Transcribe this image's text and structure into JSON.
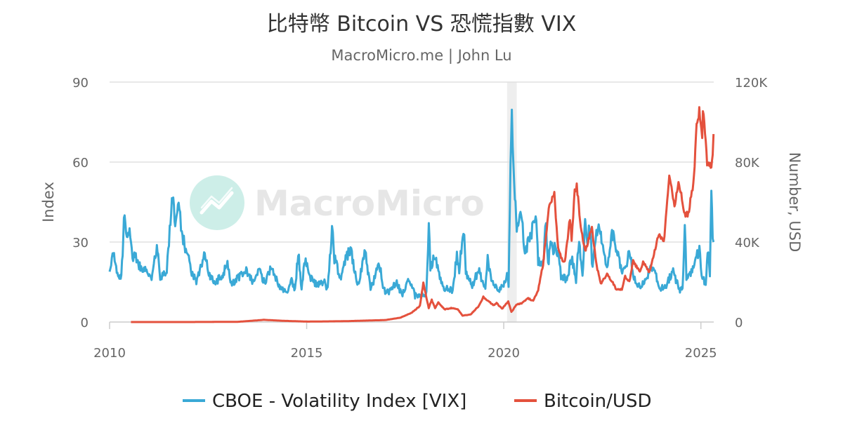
{
  "chart_data": {
    "type": "line",
    "title": "比特幣 Bitcoin VS 恐慌指數 VIX",
    "subtitle": "MacroMicro.me | John Lu",
    "watermark": "MacroMicro",
    "x_axis": {
      "type": "date",
      "ticks": [
        "2010",
        "2015",
        "2020",
        "2025"
      ],
      "range": [
        "2010-01-01",
        "2025-04-30"
      ]
    },
    "y_left": {
      "label": "Index",
      "range": [
        0,
        90
      ],
      "ticks": [
        "0",
        "30",
        "60",
        "90"
      ]
    },
    "y_right": {
      "label": "Number, USD",
      "range": [
        0,
        120000
      ],
      "ticks": [
        "0",
        "40K",
        "80K",
        "120K"
      ]
    },
    "grid": true,
    "legend": "bottom-center",
    "shaded_region": [
      "2020-02-01",
      "2020-04-30"
    ],
    "colors": {
      "vix": "#3aa9d6",
      "btc": "#e4513d",
      "shade": "#eeeeee",
      "grid": "#e0e0e0",
      "watermark": "#cdeee8"
    },
    "series": [
      {
        "name": "CBOE - Volatility Index [VIX]",
        "axis": "left",
        "points": [
          [
            "2010-01-01",
            20
          ],
          [
            "2010-02-05",
            26
          ],
          [
            "2010-03-15",
            18
          ],
          [
            "2010-04-20",
            17
          ],
          [
            "2010-05-20",
            41
          ],
          [
            "2010-06-10",
            30
          ],
          [
            "2010-07-05",
            34
          ],
          [
            "2010-08-01",
            25
          ],
          [
            "2010-09-01",
            24
          ],
          [
            "2010-10-01",
            21
          ],
          [
            "2010-11-15",
            20
          ],
          [
            "2010-12-15",
            18
          ],
          [
            "2011-02-01",
            17
          ],
          [
            "2011-03-15",
            29
          ],
          [
            "2011-04-15",
            16
          ],
          [
            "2011-06-15",
            20
          ],
          [
            "2011-08-08",
            48
          ],
          [
            "2011-09-01",
            38
          ],
          [
            "2011-10-03",
            43
          ],
          [
            "2011-11-01",
            33
          ],
          [
            "2011-12-15",
            26
          ],
          [
            "2012-02-01",
            19
          ],
          [
            "2012-03-15",
            15
          ],
          [
            "2012-06-01",
            26
          ],
          [
            "2012-07-15",
            17
          ],
          [
            "2012-09-15",
            15
          ],
          [
            "2012-11-15",
            18
          ],
          [
            "2012-12-28",
            22
          ],
          [
            "2013-02-01",
            14
          ],
          [
            "2013-04-15",
            17
          ],
          [
            "2013-06-20",
            20
          ],
          [
            "2013-08-15",
            15
          ],
          [
            "2013-10-08",
            20
          ],
          [
            "2013-12-15",
            14
          ],
          [
            "2014-02-03",
            21
          ],
          [
            "2014-04-15",
            14
          ],
          [
            "2014-07-01",
            11
          ],
          [
            "2014-08-08",
            16
          ],
          [
            "2014-09-15",
            12
          ],
          [
            "2014-10-15",
            26
          ],
          [
            "2014-11-15",
            13
          ],
          [
            "2014-12-16",
            23
          ],
          [
            "2015-02-01",
            17
          ],
          [
            "2015-04-01",
            14
          ],
          [
            "2015-06-15",
            15
          ],
          [
            "2015-07-15",
            12
          ],
          [
            "2015-08-24",
            36
          ],
          [
            "2015-09-15",
            24
          ],
          [
            "2015-11-15",
            16
          ],
          [
            "2015-12-15",
            22
          ],
          [
            "2016-02-11",
            28
          ],
          [
            "2016-04-15",
            13
          ],
          [
            "2016-06-27",
            26
          ],
          [
            "2016-08-15",
            12
          ],
          [
            "2016-11-04",
            22
          ],
          [
            "2016-12-15",
            12
          ],
          [
            "2017-02-01",
            11
          ],
          [
            "2017-04-15",
            15
          ],
          [
            "2017-06-01",
            10
          ],
          [
            "2017-08-11",
            16
          ],
          [
            "2017-10-01",
            10
          ],
          [
            "2017-12-15",
            10
          ],
          [
            "2018-01-15",
            11
          ],
          [
            "2018-02-06",
            37
          ],
          [
            "2018-02-20",
            20
          ],
          [
            "2018-04-02",
            25
          ],
          [
            "2018-06-15",
            13
          ],
          [
            "2018-09-15",
            12
          ],
          [
            "2018-10-24",
            25
          ],
          [
            "2018-11-15",
            20
          ],
          [
            "2018-12-24",
            36
          ],
          [
            "2019-01-15",
            19
          ],
          [
            "2019-03-15",
            13
          ],
          [
            "2019-05-13",
            20
          ],
          [
            "2019-07-15",
            12
          ],
          [
            "2019-08-05",
            24
          ],
          [
            "2019-09-15",
            15
          ],
          [
            "2019-11-15",
            12
          ],
          [
            "2019-12-31",
            14
          ],
          [
            "2020-01-31",
            18
          ],
          [
            "2020-02-15",
            14
          ],
          [
            "2020-03-16",
            83
          ],
          [
            "2020-04-01",
            55
          ],
          [
            "2020-05-01",
            35
          ],
          [
            "2020-06-11",
            40
          ],
          [
            "2020-07-15",
            26
          ],
          [
            "2020-09-03",
            32
          ],
          [
            "2020-10-29",
            40
          ],
          [
            "2020-11-15",
            23
          ],
          [
            "2020-12-31",
            22
          ],
          [
            "2021-01-27",
            37
          ],
          [
            "2021-02-15",
            21
          ],
          [
            "2021-03-04",
            28
          ],
          [
            "2021-05-12",
            27
          ],
          [
            "2021-06-15",
            17
          ],
          [
            "2021-08-15",
            16
          ],
          [
            "2021-09-20",
            25
          ],
          [
            "2021-11-01",
            16
          ],
          [
            "2021-11-30",
            31
          ],
          [
            "2021-12-31",
            17
          ],
          [
            "2022-01-24",
            38
          ],
          [
            "2022-02-15",
            28
          ],
          [
            "2022-03-07",
            36
          ],
          [
            "2022-04-04",
            20
          ],
          [
            "2022-05-09",
            34
          ],
          [
            "2022-06-13",
            34
          ],
          [
            "2022-08-15",
            19
          ],
          [
            "2022-09-30",
            32
          ],
          [
            "2022-10-12",
            33
          ],
          [
            "2022-12-15",
            21
          ],
          [
            "2023-01-15",
            19
          ],
          [
            "2023-03-13",
            26
          ],
          [
            "2023-04-15",
            17
          ],
          [
            "2023-06-15",
            13
          ],
          [
            "2023-08-15",
            17
          ],
          [
            "2023-10-20",
            22
          ],
          [
            "2023-12-15",
            12
          ],
          [
            "2024-02-15",
            14
          ],
          [
            "2024-04-19",
            19
          ],
          [
            "2024-06-15",
            12
          ],
          [
            "2024-07-15",
            12
          ],
          [
            "2024-08-05",
            38
          ],
          [
            "2024-08-20",
            16
          ],
          [
            "2024-09-15",
            17
          ],
          [
            "2024-11-01",
            22
          ],
          [
            "2024-12-18",
            27
          ],
          [
            "2025-01-15",
            16
          ],
          [
            "2025-02-15",
            15
          ],
          [
            "2025-03-10",
            27
          ],
          [
            "2025-03-25",
            18
          ],
          [
            "2025-04-08",
            52
          ],
          [
            "2025-04-20",
            32
          ],
          [
            "2025-04-28",
            30
          ]
        ]
      },
      {
        "name": "Bitcoin/USD",
        "axis": "right",
        "points": [
          [
            "2010-07-18",
            0
          ],
          [
            "2012-01-01",
            5
          ],
          [
            "2013-04-01",
            100
          ],
          [
            "2013-12-01",
            1100
          ],
          [
            "2014-06-01",
            600
          ],
          [
            "2015-01-15",
            220
          ],
          [
            "2016-01-01",
            430
          ],
          [
            "2016-06-15",
            700
          ],
          [
            "2017-01-01",
            1000
          ],
          [
            "2017-05-20",
            2200
          ],
          [
            "2017-09-01",
            4700
          ],
          [
            "2017-11-15",
            8000
          ],
          [
            "2017-12-17",
            19500
          ],
          [
            "2018-02-05",
            7000
          ],
          [
            "2018-03-05",
            11000
          ],
          [
            "2018-04-05",
            7000
          ],
          [
            "2018-05-05",
            9800
          ],
          [
            "2018-07-01",
            6300
          ],
          [
            "2018-09-01",
            7000
          ],
          [
            "2018-11-01",
            6400
          ],
          [
            "2018-12-15",
            3200
          ],
          [
            "2019-03-01",
            3800
          ],
          [
            "2019-05-15",
            8000
          ],
          [
            "2019-06-26",
            12500
          ],
          [
            "2019-08-15",
            10300
          ],
          [
            "2019-10-01",
            8300
          ],
          [
            "2019-10-26",
            9500
          ],
          [
            "2019-12-17",
            6600
          ],
          [
            "2020-02-12",
            10300
          ],
          [
            "2020-03-12",
            5000
          ],
          [
            "2020-05-01",
            8800
          ],
          [
            "2020-06-15",
            9400
          ],
          [
            "2020-08-15",
            11800
          ],
          [
            "2020-10-01",
            10600
          ],
          [
            "2020-11-15",
            16000
          ],
          [
            "2020-12-31",
            29000
          ],
          [
            "2021-01-15",
            37000
          ],
          [
            "2021-02-21",
            57000
          ],
          [
            "2021-03-13",
            61000
          ],
          [
            "2021-04-14",
            63500
          ],
          [
            "2021-05-19",
            37000
          ],
          [
            "2021-06-22",
            31500
          ],
          [
            "2021-07-20",
            29800
          ],
          [
            "2021-09-06",
            52000
          ],
          [
            "2021-09-21",
            41000
          ],
          [
            "2021-10-20",
            66000
          ],
          [
            "2021-11-08",
            68000
          ],
          [
            "2021-12-15",
            48000
          ],
          [
            "2022-01-24",
            35000
          ],
          [
            "2022-03-28",
            47000
          ],
          [
            "2022-05-12",
            28000
          ],
          [
            "2022-06-18",
            19000
          ],
          [
            "2022-08-15",
            24000
          ],
          [
            "2022-10-15",
            19000
          ],
          [
            "2022-11-09",
            16000
          ],
          [
            "2022-12-31",
            16500
          ],
          [
            "2023-01-30",
            23000
          ],
          [
            "2023-03-10",
            20000
          ],
          [
            "2023-04-14",
            30500
          ],
          [
            "2023-06-15",
            25000
          ],
          [
            "2023-07-15",
            30000
          ],
          [
            "2023-09-11",
            25000
          ],
          [
            "2023-10-24",
            34000
          ],
          [
            "2023-12-08",
            44000
          ],
          [
            "2024-01-23",
            39500
          ],
          [
            "2024-03-14",
            73000
          ],
          [
            "2024-05-01",
            57000
          ],
          [
            "2024-06-07",
            71000
          ],
          [
            "2024-08-05",
            54000
          ],
          [
            "2024-09-06",
            54000
          ],
          [
            "2024-10-29",
            72000
          ],
          [
            "2024-11-22",
            98000
          ],
          [
            "2024-12-17",
            106000
          ],
          [
            "2025-01-13",
            91000
          ],
          [
            "2025-01-20",
            106000
          ],
          [
            "2025-02-28",
            80000
          ],
          [
            "2025-04-08",
            77000
          ],
          [
            "2025-04-20",
            85000
          ],
          [
            "2025-04-28",
            94000
          ]
        ]
      }
    ]
  }
}
